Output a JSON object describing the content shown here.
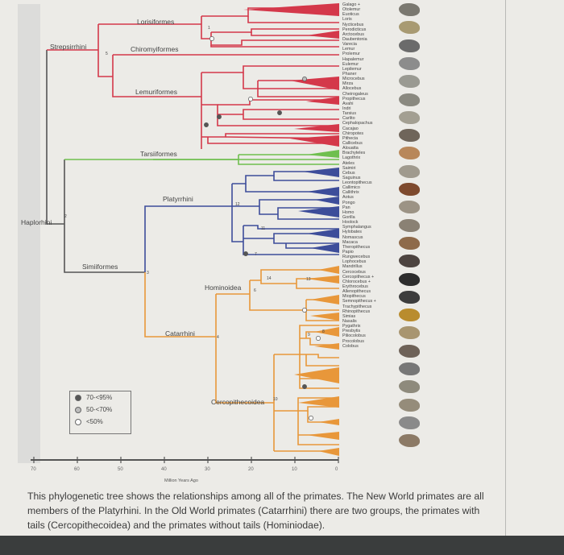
{
  "clades": {
    "strepsirrhini": "Strepsirrhini",
    "lorisiformes": "Lorisiformes",
    "chiromyiformes": "Chiromyiformes",
    "lemuriformes": "Lemuriformes",
    "haplorhini": "Haplorhini",
    "tarsiiformes": "Tarsiiformes",
    "simiiformes": "Simiiformes",
    "platyrrhini": "Platyrrhini",
    "catarrhini": "Catarrhini",
    "hominoidea": "Hominoidea",
    "cercopithecoidea": "Cercopithecoidea"
  },
  "node_numbers": {
    "n1": "1",
    "n2": "2",
    "n3": "3",
    "n4": "4",
    "n5": "5",
    "n6": "6",
    "n7": "7",
    "n8": "8",
    "n9": "9",
    "n10": "10",
    "n11": "11",
    "n12": "12",
    "n13": "13",
    "n14": "14"
  },
  "taxa": [
    {
      "name": "Galago +",
      "group": "strep"
    },
    {
      "name": "Otolemur",
      "group": "strep"
    },
    {
      "name": "Euoticus",
      "group": "strep"
    },
    {
      "name": "Loris",
      "group": "strep"
    },
    {
      "name": "Nycticebus",
      "group": "strep"
    },
    {
      "name": "Perodicticus",
      "group": "strep"
    },
    {
      "name": "Arctocebus",
      "group": "strep"
    },
    {
      "name": "Daubentonia",
      "group": "strep"
    },
    {
      "name": "Varecia",
      "group": "strep"
    },
    {
      "name": "Lemur",
      "group": "strep"
    },
    {
      "name": "Prolemur",
      "group": "strep"
    },
    {
      "name": "Hapalemur",
      "group": "strep"
    },
    {
      "name": "Eulemur",
      "group": "strep"
    },
    {
      "name": "Lepilemur",
      "group": "strep"
    },
    {
      "name": "Phaner",
      "group": "strep"
    },
    {
      "name": "Microcebus",
      "group": "strep"
    },
    {
      "name": "Mirza",
      "group": "strep"
    },
    {
      "name": "Allocebus",
      "group": "strep"
    },
    {
      "name": "Cheirogaleus",
      "group": "strep"
    },
    {
      "name": "Propithecus",
      "group": "strep"
    },
    {
      "name": "Avahi",
      "group": "strep"
    },
    {
      "name": "Indri",
      "group": "strep"
    },
    {
      "name": "Tarsius",
      "group": "tars"
    },
    {
      "name": "Carlito",
      "group": "tars"
    },
    {
      "name": "Cephalopachus",
      "group": "tars"
    },
    {
      "name": "Cacajao",
      "group": "platy"
    },
    {
      "name": "Chiropotes",
      "group": "platy"
    },
    {
      "name": "Pithecia",
      "group": "platy"
    },
    {
      "name": "Callicebus",
      "group": "platy"
    },
    {
      "name": "Alouatta",
      "group": "platy"
    },
    {
      "name": "Brachyteles",
      "group": "platy"
    },
    {
      "name": "Lagothrix",
      "group": "platy"
    },
    {
      "name": "Ateles",
      "group": "platy"
    },
    {
      "name": "Saimiri",
      "group": "platy"
    },
    {
      "name": "Cebus",
      "group": "platy"
    },
    {
      "name": "Saguinus",
      "group": "platy"
    },
    {
      "name": "Leontopithecus",
      "group": "platy"
    },
    {
      "name": "Callimico",
      "group": "platy"
    },
    {
      "name": "Callithrix",
      "group": "platy"
    },
    {
      "name": "Aotus",
      "group": "platy"
    },
    {
      "name": "Pongo",
      "group": "cat"
    },
    {
      "name": "Pan",
      "group": "cat"
    },
    {
      "name": "Homo",
      "group": "cat"
    },
    {
      "name": "Gorilla",
      "group": "cat"
    },
    {
      "name": "Hoolock",
      "group": "cat"
    },
    {
      "name": "Symphalangus",
      "group": "cat"
    },
    {
      "name": "Hylobates",
      "group": "cat"
    },
    {
      "name": "Nomascus",
      "group": "cat"
    },
    {
      "name": "Macaca",
      "group": "cat"
    },
    {
      "name": "Theropithecus",
      "group": "cat"
    },
    {
      "name": "Papio",
      "group": "cat"
    },
    {
      "name": "Rungwecebus",
      "group": "cat"
    },
    {
      "name": "Lophocebus",
      "group": "cat"
    },
    {
      "name": "Mandrillus",
      "group": "cat"
    },
    {
      "name": "Cercocebus",
      "group": "cat"
    },
    {
      "name": "Cercopithecus +",
      "group": "cat"
    },
    {
      "name": "Chlorocebus +",
      "group": "cat"
    },
    {
      "name": "Erythrocebus",
      "group": "cat"
    },
    {
      "name": "Allenopithecus",
      "group": "cat"
    },
    {
      "name": "Miopithecus",
      "group": "cat"
    },
    {
      "name": "Semnopithecus +",
      "group": "cat"
    },
    {
      "name": "Trachypithecus",
      "group": "cat"
    },
    {
      "name": "Rhinopithecus",
      "group": "cat"
    },
    {
      "name": "Simias",
      "group": "cat"
    },
    {
      "name": "Nasalis",
      "group": "cat"
    },
    {
      "name": "Pygathrix",
      "group": "cat"
    },
    {
      "name": "Presbytis",
      "group": "cat"
    },
    {
      "name": "Piliocolobus",
      "group": "cat"
    },
    {
      "name": "Procolobus",
      "group": "cat"
    },
    {
      "name": "Colobus",
      "group": "cat"
    }
  ],
  "legend": {
    "items": [
      {
        "label": "70-<95%",
        "fill": "#555555"
      },
      {
        "label": "50-<70%",
        "fill": "#bcbcbc"
      },
      {
        "label": "<50%",
        "fill": "#ffffff"
      }
    ]
  },
  "axis": {
    "ticks": [
      "70",
      "60",
      "50",
      "40",
      "30",
      "20",
      "10",
      "0"
    ],
    "tick_values": [
      70,
      60,
      50,
      40,
      30,
      20,
      10,
      0
    ],
    "label": "Million Years Ago"
  },
  "colors": {
    "strepsirrhini": "#d4384a",
    "tarsiiformes": "#6fbf4f",
    "platyrrhini": "#3d4d9a",
    "catarrhini": "#e8973a",
    "stem": "#555555"
  },
  "caption": "This phylogenetic tree shows the relationships among all of the primates. The New World primates are all members of the Platyrhini. In the Old World primates (Catarrhini) there are two groups, the primates with tails (Cercopithecoidea) and the primates without tails (Hominiodae)."
}
